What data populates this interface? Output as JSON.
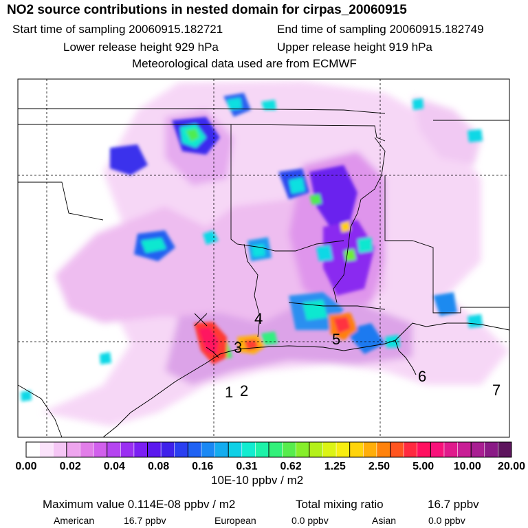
{
  "title": "NO2 source contributions in nested domain for cirpas_20060915",
  "start_time": "Start time of sampling 20060915.182721",
  "end_time": "End time of sampling 20060915.182749",
  "lower_height": "Lower release height  929 hPa",
  "upper_height": "Upper release height  919 hPa",
  "met_data": "Meteorological data used are from ECMWF",
  "markers": [
    {
      "label": "1"
    },
    {
      "label": "2"
    },
    {
      "label": "3"
    },
    {
      "label": "4"
    },
    {
      "label": "5"
    },
    {
      "label": "6"
    },
    {
      "label": "7"
    }
  ],
  "colorbar": {
    "tick_labels": [
      "0.00",
      "0.02",
      "0.04",
      "0.08",
      "0.16",
      "0.31",
      "0.62",
      "1.25",
      "2.50",
      "5.00",
      "10.00",
      "20.00"
    ],
    "colors": [
      "#ffffff",
      "#fbe3fb",
      "#f5c6f5",
      "#eea5ee",
      "#e27ee9",
      "#d160ec",
      "#b545f0",
      "#9a2ff2",
      "#7b1ff3",
      "#5b19ee",
      "#3f22ea",
      "#2a3ff0",
      "#1f62f3",
      "#1a88f4",
      "#14acef",
      "#0fd0e6",
      "#12ecd0",
      "#1df2a8",
      "#33f07a",
      "#57ec4c",
      "#86ee2a",
      "#b4f01a",
      "#dcf414",
      "#f8ee10",
      "#ffd40c",
      "#ffae0a",
      "#ff820c",
      "#ff5520",
      "#ff2a40",
      "#ff1060",
      "#f8127a",
      "#e01a8c",
      "#c81e95",
      "#a91e92",
      "#8a1a86",
      "#5e155e"
    ],
    "unit": "10E-10 ppbv / m2"
  },
  "footer": {
    "max_value": "Maximum value  0.114E-08 ppbv / m2",
    "total_mixing": "Total mixing ratio",
    "total_value": "16.7 ppbv",
    "american_label": "American",
    "american_value": "16.7 ppbv",
    "european_label": "European",
    "european_value": "0.0 ppbv",
    "asian_label": "Asian",
    "asian_value": "0.0 ppbv"
  }
}
